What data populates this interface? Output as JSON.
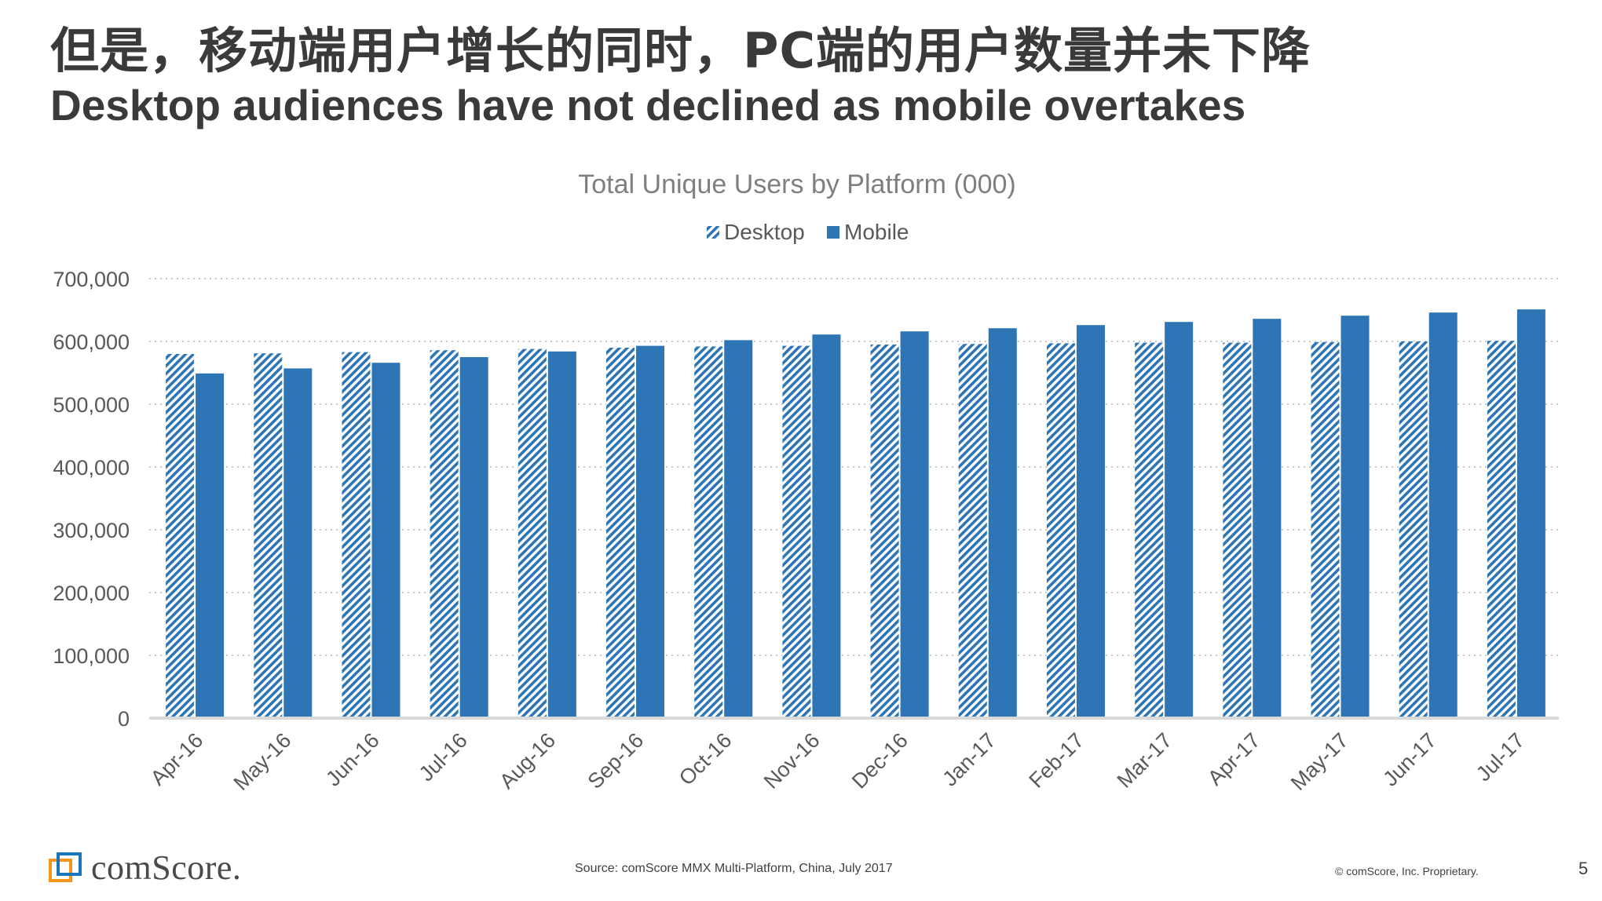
{
  "header": {
    "title_cn": "但是，移动端用户增长的同时，PC端的用户数量并未下降",
    "title_en": "Desktop audiences have not declined as mobile overtakes"
  },
  "chart_data": {
    "type": "bar",
    "title": "Total Unique Users by Platform (000)",
    "categories": [
      "Apr-16",
      "May-16",
      "Jun-16",
      "Jul-16",
      "Aug-16",
      "Sep-16",
      "Oct-16",
      "Nov-16",
      "Dec-16",
      "Jan-17",
      "Feb-17",
      "Mar-17",
      "Apr-17",
      "May-17",
      "Jun-17",
      "Jul-17"
    ],
    "series": [
      {
        "name": "Desktop",
        "pattern": "diagonal-hatch",
        "color": "#2e75b6",
        "values": [
          580000,
          581000,
          583000,
          586000,
          588000,
          590000,
          592000,
          593000,
          595000,
          596000,
          597000,
          598000,
          598000,
          599000,
          600000,
          601000
        ]
      },
      {
        "name": "Mobile",
        "pattern": "solid",
        "color": "#2e75b6",
        "values": [
          549000,
          557000,
          566000,
          575000,
          584000,
          593000,
          602000,
          611000,
          616000,
          621000,
          626000,
          631000,
          636000,
          641000,
          646000,
          651000
        ]
      }
    ],
    "y_ticks": [
      "0",
      "100,000",
      "200,000",
      "300,000",
      "400,000",
      "500,000",
      "600,000",
      "700,000"
    ],
    "ylim": [
      0,
      700000
    ],
    "grid": true,
    "grid_style": "dotted",
    "legend_position": "top-center",
    "xlabel_rotation": -45
  },
  "footer": {
    "source": "Source: comScore MMX Multi-Platform, China, July 2017",
    "copyright": "© comScore, Inc. Proprietary.",
    "page_number": "5",
    "logo_text": "comScore."
  },
  "colors": {
    "bar": "#2e75b6",
    "title_text": "#3a3a3a",
    "chart_title_text": "#7f7f7f",
    "logo_orange": "#f7941d",
    "logo_blue": "#1b75bb"
  }
}
